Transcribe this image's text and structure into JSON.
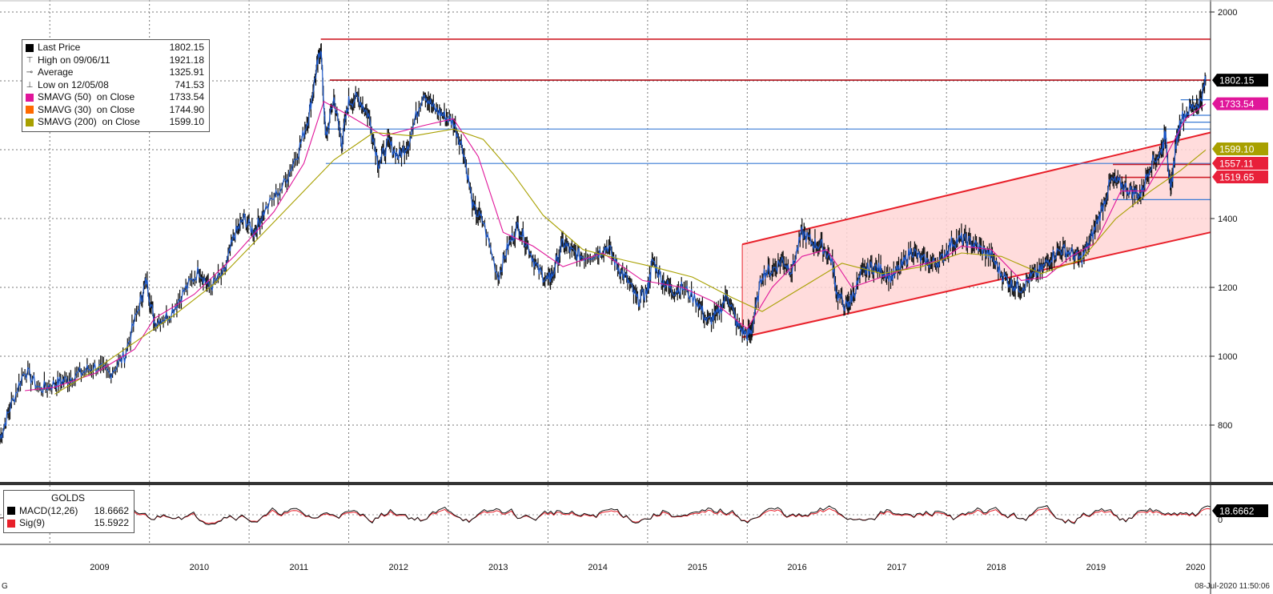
{
  "chart_data": {
    "type": "line",
    "instrument": "GOLDS",
    "timestamp": "08-Jul-2020 11:50:06",
    "corner_mark": "G",
    "ylim": [
      600,
      2000
    ],
    "yticks": [
      800,
      1000,
      1200,
      1400,
      2000
    ],
    "x_tick_labels": [
      "2009",
      "2010",
      "2011",
      "2012",
      "2013",
      "2014",
      "2015",
      "2016",
      "2017",
      "2018",
      "2019",
      "2020"
    ],
    "x_tick_years": [
      2009,
      2010,
      2011,
      2012,
      2013,
      2014,
      2015,
      2016,
      2017,
      2018,
      2019,
      2020
    ],
    "xlim": [
      2008.45,
      2020.6
    ],
    "legend": [
      {
        "label": "Last Price",
        "value": "1802.15",
        "color": "#000000",
        "marker": "square"
      },
      {
        "label": "High on 09/06/11",
        "value": "1921.18",
        "marker": "T"
      },
      {
        "label": "Average",
        "value": "1325.91",
        "marker": "dash"
      },
      {
        "label": "Low on 12/05/08",
        "value": "741.53",
        "marker": "L"
      },
      {
        "label": "SMAVG (50)  on Close",
        "value": "1733.54",
        "color": "#e0169a",
        "marker": "square"
      },
      {
        "label": "SMAVG (30)  on Close",
        "value": "1744.90",
        "color": "#ff6a00",
        "marker": "square"
      },
      {
        "label": "SMAVG (200)  on Close",
        "value": "1599.10",
        "color": "#a8a000",
        "marker": "square"
      }
    ],
    "right_labels": [
      {
        "value": "1802.15",
        "y": 1802.15,
        "color": "#000000"
      },
      {
        "value": "1733.54",
        "y": 1733.54,
        "color": "#e0169a"
      },
      {
        "value": "1599.10",
        "y": 1599.1,
        "color": "#a8a000"
      },
      {
        "value": "1557.11",
        "y": 1557.11,
        "color": "#e8203a"
      },
      {
        "value": "1519.65",
        "y": 1519.65,
        "color": "#e8203a"
      }
    ],
    "series": [
      {
        "name": "Last Price",
        "color": "#1a56c8",
        "points": [
          [
            2008.45,
            760
          ],
          [
            2008.55,
            850
          ],
          [
            2008.7,
            960
          ],
          [
            2008.85,
            905
          ],
          [
            2009.0,
            920
          ],
          [
            2009.1,
            930
          ],
          [
            2009.25,
            950
          ],
          [
            2009.4,
            970
          ],
          [
            2009.55,
            950
          ],
          [
            2009.7,
            1000
          ],
          [
            2009.85,
            1150
          ],
          [
            2009.92,
            1220
          ],
          [
            2010.0,
            1100
          ],
          [
            2010.15,
            1120
          ],
          [
            2010.3,
            1190
          ],
          [
            2010.45,
            1250
          ],
          [
            2010.55,
            1200
          ],
          [
            2010.7,
            1240
          ],
          [
            2010.8,
            1350
          ],
          [
            2010.9,
            1400
          ],
          [
            2011.0,
            1360
          ],
          [
            2011.1,
            1420
          ],
          [
            2011.3,
            1500
          ],
          [
            2011.45,
            1600
          ],
          [
            2011.55,
            1700
          ],
          [
            2011.62,
            1820
          ],
          [
            2011.67,
            1900
          ],
          [
            2011.72,
            1630
          ],
          [
            2011.8,
            1750
          ],
          [
            2011.88,
            1620
          ],
          [
            2011.95,
            1740
          ],
          [
            2012.05,
            1750
          ],
          [
            2012.15,
            1700
          ],
          [
            2012.25,
            1560
          ],
          [
            2012.35,
            1620
          ],
          [
            2012.45,
            1580
          ],
          [
            2012.55,
            1620
          ],
          [
            2012.7,
            1770
          ],
          [
            2012.8,
            1720
          ],
          [
            2012.9,
            1700
          ],
          [
            2013.0,
            1680
          ],
          [
            2013.1,
            1600
          ],
          [
            2013.2,
            1430
          ],
          [
            2013.3,
            1390
          ],
          [
            2013.45,
            1230
          ],
          [
            2013.55,
            1320
          ],
          [
            2013.65,
            1380
          ],
          [
            2013.75,
            1320
          ],
          [
            2013.85,
            1250
          ],
          [
            2013.95,
            1220
          ],
          [
            2014.0,
            1240
          ],
          [
            2014.1,
            1330
          ],
          [
            2014.2,
            1300
          ],
          [
            2014.3,
            1290
          ],
          [
            2014.45,
            1300
          ],
          [
            2014.55,
            1320
          ],
          [
            2014.65,
            1260
          ],
          [
            2014.75,
            1220
          ],
          [
            2014.85,
            1160
          ],
          [
            2014.95,
            1190
          ],
          [
            2015.0,
            1280
          ],
          [
            2015.1,
            1220
          ],
          [
            2015.2,
            1190
          ],
          [
            2015.3,
            1200
          ],
          [
            2015.45,
            1160
          ],
          [
            2015.55,
            1100
          ],
          [
            2015.65,
            1120
          ],
          [
            2015.75,
            1180
          ],
          [
            2015.85,
            1090
          ],
          [
            2015.95,
            1060
          ],
          [
            2016.0,
            1080
          ],
          [
            2016.1,
            1240
          ],
          [
            2016.2,
            1250
          ],
          [
            2016.3,
            1280
          ],
          [
            2016.4,
            1250
          ],
          [
            2016.5,
            1360
          ],
          [
            2016.6,
            1330
          ],
          [
            2016.7,
            1320
          ],
          [
            2016.8,
            1280
          ],
          [
            2016.85,
            1180
          ],
          [
            2016.95,
            1140
          ],
          [
            2017.0,
            1170
          ],
          [
            2017.1,
            1240
          ],
          [
            2017.2,
            1260
          ],
          [
            2017.3,
            1250
          ],
          [
            2017.4,
            1230
          ],
          [
            2017.5,
            1260
          ],
          [
            2017.6,
            1310
          ],
          [
            2017.7,
            1280
          ],
          [
            2017.8,
            1270
          ],
          [
            2017.9,
            1280
          ],
          [
            2018.0,
            1330
          ],
          [
            2018.1,
            1340
          ],
          [
            2018.2,
            1330
          ],
          [
            2018.3,
            1310
          ],
          [
            2018.4,
            1290
          ],
          [
            2018.5,
            1240
          ],
          [
            2018.6,
            1210
          ],
          [
            2018.7,
            1200
          ],
          [
            2018.8,
            1230
          ],
          [
            2018.9,
            1250
          ],
          [
            2019.0,
            1290
          ],
          [
            2019.1,
            1310
          ],
          [
            2019.2,
            1300
          ],
          [
            2019.3,
            1280
          ],
          [
            2019.4,
            1340
          ],
          [
            2019.5,
            1420
          ],
          [
            2019.6,
            1510
          ],
          [
            2019.7,
            1500
          ],
          [
            2019.8,
            1480
          ],
          [
            2019.9,
            1470
          ],
          [
            2020.0,
            1560
          ],
          [
            2020.1,
            1590
          ],
          [
            2020.15,
            1650
          ],
          [
            2020.2,
            1470
          ],
          [
            2020.25,
            1610
          ],
          [
            2020.3,
            1690
          ],
          [
            2020.4,
            1720
          ],
          [
            2020.5,
            1740
          ],
          [
            2020.55,
            1802
          ]
        ]
      },
      {
        "name": "SMAVG (50)  on Close",
        "color": "#e0169a",
        "points": [
          [
            2008.7,
            900
          ],
          [
            2009.0,
            910
          ],
          [
            2009.4,
            950
          ],
          [
            2009.8,
            1020
          ],
          [
            2010.0,
            1110
          ],
          [
            2010.4,
            1180
          ],
          [
            2010.8,
            1290
          ],
          [
            2011.2,
            1420
          ],
          [
            2011.5,
            1560
          ],
          [
            2011.7,
            1740
          ],
          [
            2011.95,
            1700
          ],
          [
            2012.3,
            1640
          ],
          [
            2012.7,
            1670
          ],
          [
            2013.0,
            1690
          ],
          [
            2013.25,
            1580
          ],
          [
            2013.5,
            1360
          ],
          [
            2013.8,
            1320
          ],
          [
            2014.1,
            1260
          ],
          [
            2014.5,
            1300
          ],
          [
            2014.9,
            1220
          ],
          [
            2015.3,
            1200
          ],
          [
            2015.6,
            1160
          ],
          [
            2015.95,
            1080
          ],
          [
            2016.2,
            1200
          ],
          [
            2016.5,
            1290
          ],
          [
            2016.75,
            1310
          ],
          [
            2017.0,
            1200
          ],
          [
            2017.3,
            1230
          ],
          [
            2017.6,
            1260
          ],
          [
            2017.9,
            1280
          ],
          [
            2018.1,
            1320
          ],
          [
            2018.4,
            1310
          ],
          [
            2018.7,
            1220
          ],
          [
            2018.95,
            1230
          ],
          [
            2019.2,
            1290
          ],
          [
            2019.45,
            1330
          ],
          [
            2019.7,
            1480
          ],
          [
            2019.95,
            1480
          ],
          [
            2020.15,
            1580
          ],
          [
            2020.35,
            1690
          ],
          [
            2020.55,
            1733
          ]
        ]
      },
      {
        "name": "SMAVG (200)  on Close",
        "color": "#a8a000",
        "points": [
          [
            2009.0,
            890
          ],
          [
            2009.4,
            960
          ],
          [
            2009.8,
            1040
          ],
          [
            2010.2,
            1120
          ],
          [
            2010.6,
            1210
          ],
          [
            2011.0,
            1330
          ],
          [
            2011.4,
            1450
          ],
          [
            2011.8,
            1570
          ],
          [
            2012.2,
            1650
          ],
          [
            2012.6,
            1640
          ],
          [
            2013.0,
            1660
          ],
          [
            2013.3,
            1630
          ],
          [
            2013.6,
            1530
          ],
          [
            2013.9,
            1410
          ],
          [
            2014.3,
            1310
          ],
          [
            2014.7,
            1280
          ],
          [
            2015.0,
            1260
          ],
          [
            2015.4,
            1230
          ],
          [
            2015.8,
            1170
          ],
          [
            2016.1,
            1130
          ],
          [
            2016.5,
            1200
          ],
          [
            2016.9,
            1270
          ],
          [
            2017.3,
            1240
          ],
          [
            2017.7,
            1260
          ],
          [
            2018.1,
            1300
          ],
          [
            2018.5,
            1290
          ],
          [
            2018.9,
            1240
          ],
          [
            2019.3,
            1280
          ],
          [
            2019.65,
            1400
          ],
          [
            2020.0,
            1480
          ],
          [
            2020.3,
            1540
          ],
          [
            2020.55,
            1599
          ]
        ]
      }
    ],
    "horizontal_levels": [
      {
        "y": 1921.18,
        "color": "#d0202a",
        "x_from": 2011.67
      },
      {
        "y": 1802.15,
        "color": "#b0101a",
        "x_from": 2011.76
      },
      {
        "y": 1660,
        "color": "#3a7bd5",
        "x_from": 2011.72
      },
      {
        "y": 1560,
        "color": "#3a7bd5",
        "x_from": 2011.72
      },
      {
        "y": 1557.11,
        "color": "#d0202a",
        "x_from": 2019.62
      },
      {
        "y": 1519.65,
        "color": "#d0202a",
        "x_from": 2019.62
      },
      {
        "y": 1455,
        "color": "#3a7bd5",
        "x_from": 2019.62
      },
      {
        "y": 1745,
        "color": "#3a7bd5",
        "x_from": 2020.3
      },
      {
        "y": 1680,
        "color": "#3a7bd5",
        "x_from": 2020.3
      },
      {
        "y": 1700,
        "color": "#3a7bd5",
        "x_from": 2020.3
      }
    ],
    "channel": {
      "upper": [
        [
          2015.9,
          1325
        ],
        [
          2020.6,
          1650
        ]
      ],
      "lower": [
        [
          2015.9,
          1055
        ],
        [
          2020.6,
          1360
        ]
      ],
      "color": "#e8202a",
      "fill": "#ffd6d6"
    },
    "macd_panel": {
      "title": "GOLDS",
      "items": [
        {
          "label": "MACD(12,26)",
          "value": "18.6662",
          "color": "#000000"
        },
        {
          "label": "Sig(9)",
          "value": "15.5922",
          "color": "#e8202a"
        }
      ],
      "right_label": "18.6662",
      "axis_label": "0",
      "zero_level": 0
    }
  }
}
